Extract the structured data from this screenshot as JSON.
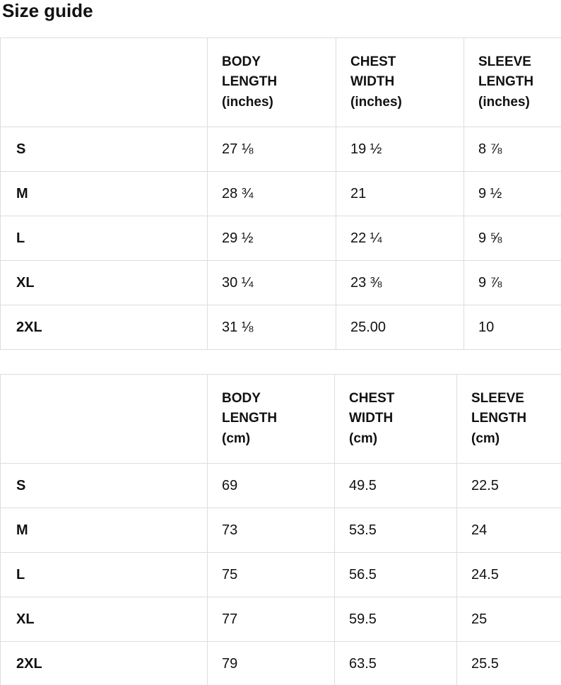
{
  "page": {
    "title": "Size guide"
  },
  "colors": {
    "text": "#111111",
    "border": "#dddddd",
    "background": "#ffffff"
  },
  "tables": [
    {
      "id": "inches",
      "headers": [
        "BODY\nLENGTH\n(inches)",
        "CHEST\nWIDTH\n(inches)",
        "SLEEVE\nLENGTH\n(inches)"
      ],
      "rows": [
        {
          "size": "S",
          "values": [
            "27 ⅛",
            "19 ½",
            "8 ⅞"
          ]
        },
        {
          "size": "M",
          "values": [
            "28 ¾",
            "21",
            "9 ½"
          ]
        },
        {
          "size": "L",
          "values": [
            "29 ½",
            "22 ¼",
            "9 ⅝"
          ]
        },
        {
          "size": "XL",
          "values": [
            "30 ¼",
            "23 ⅜",
            "9 ⅞"
          ]
        },
        {
          "size": "2XL",
          "values": [
            "31 ⅛",
            "25.00",
            "10"
          ]
        }
      ]
    },
    {
      "id": "cm",
      "headers": [
        "BODY\nLENGTH\n(cm)",
        "CHEST\nWIDTH\n(cm)",
        "SLEEVE\nLENGTH\n(cm)"
      ],
      "rows": [
        {
          "size": "S",
          "values": [
            "69",
            "49.5",
            "22.5"
          ]
        },
        {
          "size": "M",
          "values": [
            "73",
            "53.5",
            "24"
          ]
        },
        {
          "size": "L",
          "values": [
            "75",
            "56.5",
            "24.5"
          ]
        },
        {
          "size": "XL",
          "values": [
            "77",
            "59.5",
            "25"
          ]
        },
        {
          "size": "2XL",
          "values": [
            "79",
            "63.5",
            "25.5"
          ]
        }
      ]
    }
  ]
}
